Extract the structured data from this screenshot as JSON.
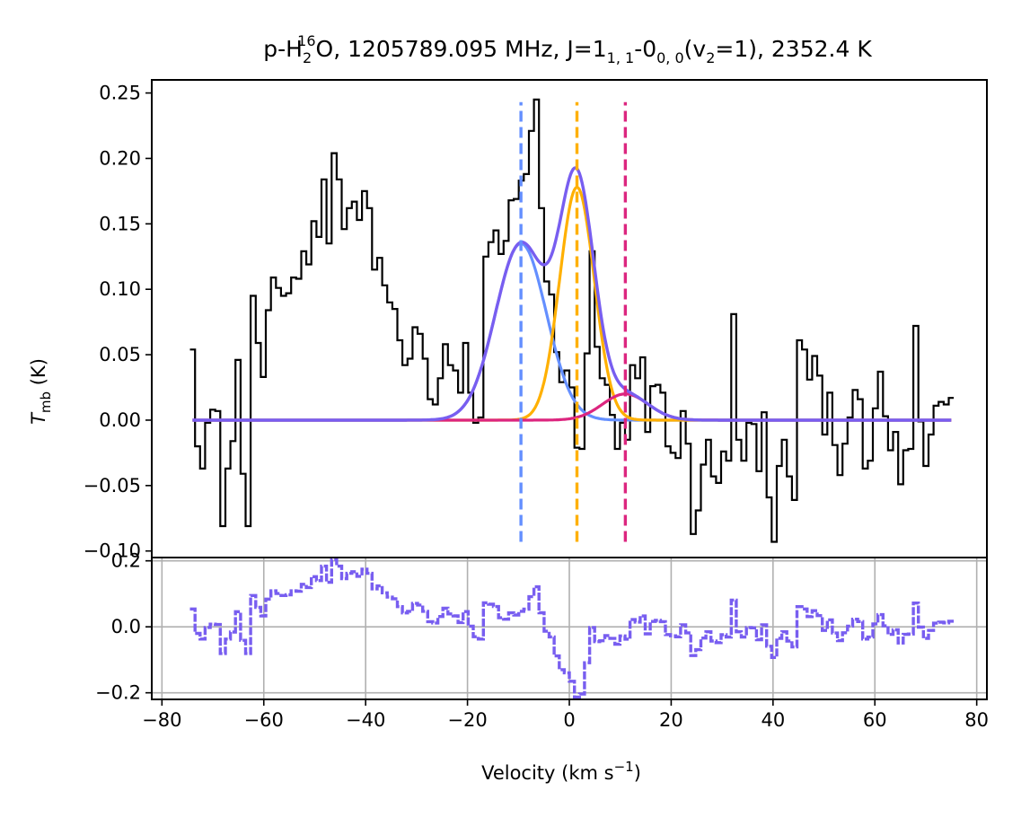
{
  "chart_data": [
    {
      "panel": "spectrum",
      "type": "line",
      "title": {
        "species_main": "p-H",
        "species_sub": "2",
        "species_sup": "16",
        "species_tail": "O, 1205789.095 MHz, J=1",
        "j_up_sub": "1, 1",
        "mid": "-0",
        "j_lo_sub": "0, 0",
        "tail_a": "(v",
        "v_sub": "2",
        "tail_b": "=1), 2352.4 K"
      },
      "ylabel": {
        "main": "T",
        "sub": "mb",
        "unit": " (K)"
      },
      "xlim": [
        -82,
        82
      ],
      "ylim": [
        -0.105,
        0.26
      ],
      "yticks": [
        -0.1,
        -0.05,
        0.0,
        0.05,
        0.1,
        0.15,
        0.2,
        0.25
      ],
      "ytick_labels": [
        "−0.10",
        "−0.05",
        "0.00",
        "0.05",
        "0.10",
        "0.15",
        "0.20",
        "0.25"
      ],
      "observed": {
        "name": "observed spectrum",
        "color": "#000000",
        "step_edges": [
          -74.5,
          75.5
        ],
        "values": [
          0.054,
          -0.02,
          -0.037,
          -0.002,
          0.008,
          0.007,
          -0.081,
          -0.037,
          -0.016,
          0.046,
          -0.041,
          -0.081,
          0.095,
          0.059,
          0.033,
          0.084,
          0.109,
          0.101,
          0.095,
          0.097,
          0.109,
          0.108,
          0.129,
          0.119,
          0.152,
          0.14,
          0.184,
          0.135,
          0.204,
          0.184,
          0.146,
          0.162,
          0.167,
          0.153,
          0.175,
          0.162,
          0.115,
          0.124,
          0.103,
          0.09,
          0.085,
          0.061,
          0.042,
          0.047,
          0.071,
          0.066,
          0.047,
          0.016,
          0.012,
          0.032,
          0.058,
          0.042,
          0.038,
          0.021,
          0.059,
          0.021,
          -0.002,
          0.002,
          0.125,
          0.136,
          0.145,
          0.127,
          0.137,
          0.168,
          0.169,
          0.183,
          0.188,
          0.221,
          0.245,
          0.162,
          0.106,
          0.096,
          0.052,
          0.029,
          0.038,
          0.025,
          -0.021,
          -0.022,
          0.051,
          0.129,
          0.056,
          0.032,
          0.027,
          0.004,
          -0.022,
          -0.002,
          -0.015,
          0.042,
          0.032,
          0.048,
          -0.009,
          0.026,
          0.027,
          0.021,
          -0.02,
          -0.025,
          -0.029,
          0.007,
          -0.018,
          -0.087,
          -0.069,
          -0.034,
          -0.015,
          -0.043,
          -0.048,
          -0.024,
          -0.031,
          0.081,
          -0.015,
          -0.031,
          -0.002,
          -0.003,
          -0.039,
          0.006,
          -0.059,
          -0.093,
          -0.035,
          -0.015,
          -0.043,
          -0.061,
          0.061,
          0.054,
          0.031,
          0.049,
          0.034,
          -0.011,
          0.021,
          -0.019,
          -0.042,
          -0.018,
          0.002,
          0.023,
          0.016,
          -0.037,
          -0.031,
          0.009,
          0.037,
          0.003,
          -0.023,
          -0.009,
          -0.049,
          -0.023,
          -0.022,
          0.072,
          -0.001,
          -0.035,
          -0.011,
          0.011,
          0.014,
          0.012,
          0.017
        ]
      },
      "gaussian_components": [
        {
          "name": "component 1",
          "color": "#648FFF",
          "amplitude": 0.135,
          "center": -9.5,
          "sigma": 5.0
        },
        {
          "name": "component 2",
          "color": "#FFB000",
          "amplitude": 0.178,
          "center": 1.5,
          "sigma": 3.4
        },
        {
          "name": "component 3",
          "color": "#DC267F",
          "amplitude": 0.02,
          "center": 11.0,
          "sigma": 4.5
        }
      ],
      "total_fit": {
        "name": "total fit",
        "color": "#785EF0",
        "x_range": [
          -74,
          75
        ]
      },
      "vlines": [
        {
          "name": "component 1 center",
          "x": -9.5,
          "color": "#648FFF",
          "y_range": [
            -0.093,
            0.243
          ]
        },
        {
          "name": "component 2 center",
          "x": 1.5,
          "color": "#FFB000",
          "y_range": [
            -0.093,
            0.243
          ]
        },
        {
          "name": "component 3 center",
          "x": 11.0,
          "color": "#DC267F",
          "y_range": [
            -0.093,
            0.243
          ]
        }
      ]
    },
    {
      "panel": "residual",
      "type": "line",
      "name": "residual",
      "color": "#785EF0",
      "xlabel": {
        "main": "Velocity (km s",
        "sup": "−1",
        "tail": ")"
      },
      "xlim": [
        -82,
        82
      ],
      "ylim": [
        -0.22,
        0.21
      ],
      "grid": true,
      "xticks": [
        -80,
        -60,
        -40,
        -20,
        0,
        20,
        40,
        60,
        80
      ],
      "xtick_labels": [
        "−80",
        "−60",
        "−40",
        "−20",
        "0",
        "20",
        "40",
        "60",
        "80"
      ],
      "yticks": [
        -0.2,
        0.0,
        0.2
      ],
      "ytick_labels": [
        "−0.2",
        "0.0",
        "0.2"
      ]
    }
  ]
}
